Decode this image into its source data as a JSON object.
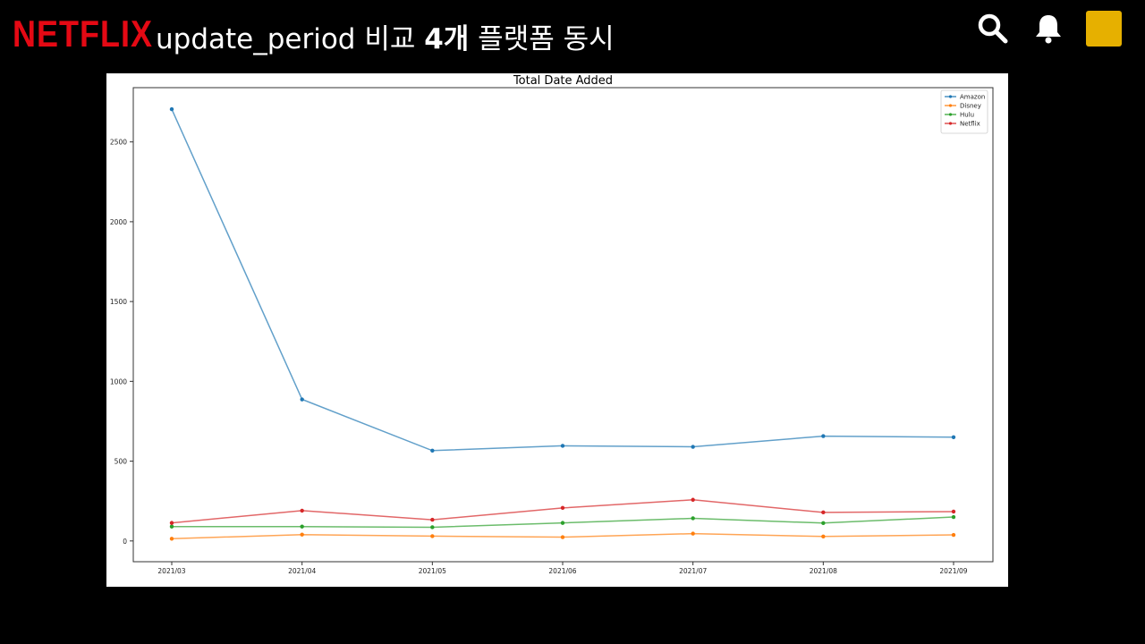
{
  "header": {
    "logo_text": "NETFLIX",
    "title_prefix": "update_period 비교 ",
    "title_bold": "4개",
    "title_suffix": " 플랫폼 동시",
    "search_icon": "search-icon",
    "bell_icon": "bell-icon",
    "avatar_color": "#e6b000"
  },
  "colors": {
    "logo": "#e50914",
    "background": "#000000"
  },
  "chart_data": {
    "type": "line",
    "title": "Total Date Added",
    "xlabel": "",
    "ylabel": "",
    "categories": [
      "2021/03",
      "2021/04",
      "2021/05",
      "2021/06",
      "2021/07",
      "2021/08",
      "2021/09"
    ],
    "ylim": [
      -130,
      2840
    ],
    "yticks": [
      0,
      500,
      1000,
      1500,
      2000,
      2500
    ],
    "legend_position": "top-right",
    "grid": false,
    "series": [
      {
        "name": "Amazon",
        "color": "#1f77b4",
        "values": [
          2705,
          887,
          566,
          596,
          590,
          657,
          650
        ]
      },
      {
        "name": "Disney",
        "color": "#ff7f0e",
        "values": [
          14,
          40,
          30,
          24,
          46,
          28,
          38
        ]
      },
      {
        "name": "Hulu",
        "color": "#2ca02c",
        "values": [
          90,
          90,
          86,
          113,
          142,
          112,
          150
        ]
      },
      {
        "name": "Netflix",
        "color": "#d62728",
        "values": [
          113,
          190,
          133,
          207,
          258,
          179,
          184
        ]
      }
    ]
  }
}
